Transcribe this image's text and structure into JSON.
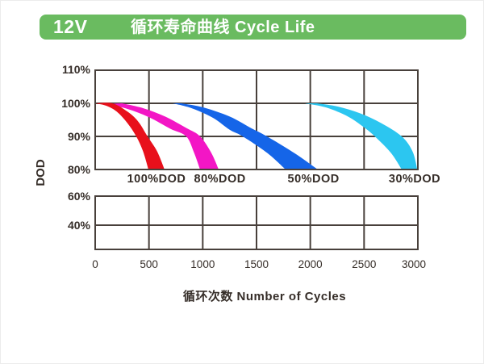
{
  "header": {
    "badge": "12V",
    "title": "循环寿命曲线 Cycle Life",
    "bar_color": "#6abb60",
    "text_color": "#ffffff"
  },
  "chart_data": {
    "type": "area",
    "title": "循环寿命曲线 Cycle Life",
    "xlabel": "循环次数 Number of Cycles",
    "ylabel": "DOD",
    "x_ticks": [
      0,
      500,
      1000,
      1500,
      2000,
      2500,
      3000
    ],
    "xlim": [
      0,
      3000
    ],
    "grid": true,
    "grid_color": "#48403b",
    "text_color": "#352d28",
    "upper_panel": {
      "y_tick_labels": [
        "110%",
        "100%",
        "90%",
        "80%"
      ],
      "y_tick_values": [
        110,
        100,
        90,
        80
      ],
      "ylim": [
        80,
        110
      ]
    },
    "lower_panel": {
      "y_tick_labels": [
        "60%",
        "40%"
      ],
      "y_tick_values": [
        60,
        40
      ]
    },
    "series": [
      {
        "name": "100%DOD",
        "color": "#e8101b",
        "label_x": 570,
        "upper": [
          [
            0,
            100
          ],
          [
            160,
            100
          ],
          [
            300,
            97.5
          ],
          [
            400,
            94.5
          ],
          [
            487,
            90
          ],
          [
            575,
            85.5
          ],
          [
            645,
            80
          ]
        ],
        "lower": [
          [
            0,
            100
          ],
          [
            100,
            99.3
          ],
          [
            200,
            97.5
          ],
          [
            300,
            94
          ],
          [
            382,
            90
          ],
          [
            445,
            85.5
          ],
          [
            495,
            80
          ]
        ]
      },
      {
        "name": "80%DOD",
        "color": "#f316c5",
        "label_x": 1160,
        "upper": [
          [
            250,
            100
          ],
          [
            450,
            98.5
          ],
          [
            650,
            96
          ],
          [
            850,
            92.5
          ],
          [
            975,
            90
          ],
          [
            1080,
            85
          ],
          [
            1148,
            80
          ]
        ],
        "lower": [
          [
            100,
            99.8
          ],
          [
            300,
            98.3
          ],
          [
            500,
            95.8
          ],
          [
            700,
            92.3
          ],
          [
            847,
            90
          ],
          [
            920,
            85
          ],
          [
            975,
            80
          ]
        ]
      },
      {
        "name": "50%DOD",
        "color": "#1565e8",
        "label_x": 2030,
        "upper": [
          [
            800,
            100
          ],
          [
            1000,
            98.8
          ],
          [
            1250,
            96
          ],
          [
            1450,
            92.5
          ],
          [
            1597,
            90
          ],
          [
            1850,
            85
          ],
          [
            2070,
            80
          ]
        ],
        "lower": [
          [
            720,
            100
          ],
          [
            900,
            98.5
          ],
          [
            1100,
            95.5
          ],
          [
            1250,
            92
          ],
          [
            1372,
            90
          ],
          [
            1600,
            85
          ],
          [
            1770,
            80
          ]
        ]
      },
      {
        "name": "30%DOD",
        "color": "#2cc6f0",
        "label_x": 2970,
        "upper": [
          [
            2060,
            100
          ],
          [
            2260,
            99
          ],
          [
            2460,
            97
          ],
          [
            2660,
            94
          ],
          [
            2850,
            90
          ],
          [
            2950,
            85.5
          ],
          [
            2995,
            80
          ]
        ],
        "lower": [
          [
            1950,
            100
          ],
          [
            2150,
            98.7
          ],
          [
            2350,
            96
          ],
          [
            2500,
            92.7
          ],
          [
            2600,
            90
          ],
          [
            2750,
            85
          ],
          [
            2850,
            80
          ]
        ]
      }
    ]
  }
}
